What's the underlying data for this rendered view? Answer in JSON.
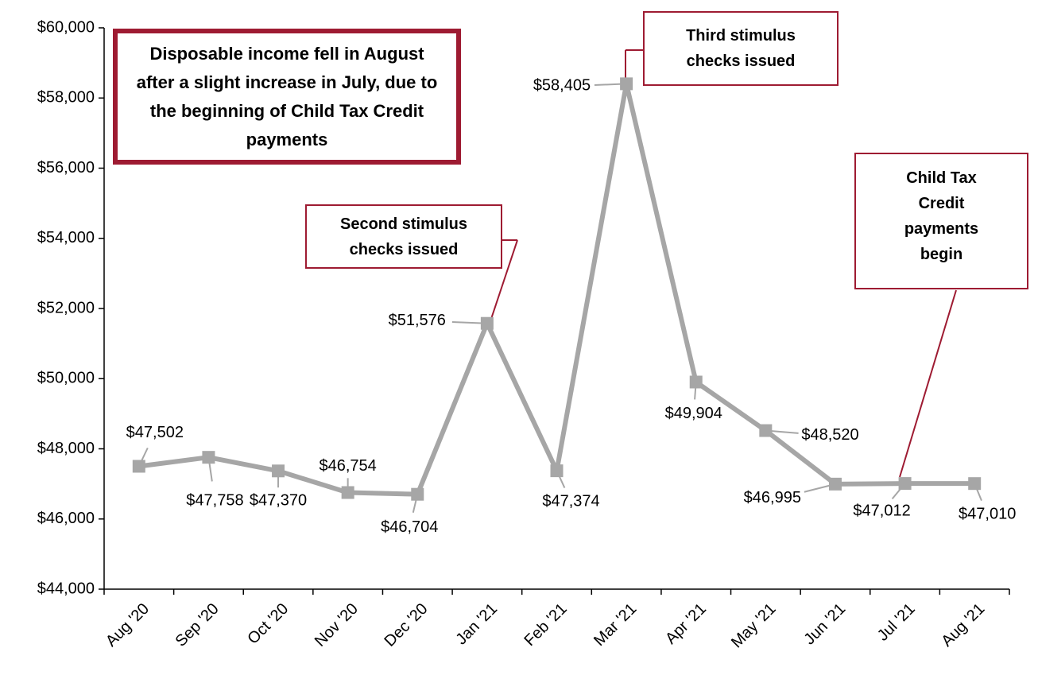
{
  "chart_data": {
    "type": "line",
    "categories": [
      "Aug '20",
      "Sep '20",
      "Oct '20",
      "Nov '20",
      "Dec '20",
      "Jan '21",
      "Feb '21",
      "Mar '21",
      "Apr '21",
      "May '21",
      "Jun '21",
      "Jul '21",
      "Aug '21"
    ],
    "values": [
      47502,
      47758,
      47370,
      46754,
      46704,
      51576,
      47374,
      58405,
      49904,
      48520,
      46995,
      47012,
      47010
    ],
    "value_labels": [
      "$47,502",
      "$47,758",
      "$47,370",
      "$46,754",
      "$46,704",
      "$51,576",
      "$47,374",
      "$58,405",
      "$49,904",
      "$48,520",
      "$46,995",
      "$47,012",
      "$47,010"
    ],
    "color": "#a6a6a6",
    "ylim": [
      44000,
      60000
    ],
    "yticks": [
      {
        "value": 44000,
        "label": "$44,000"
      },
      {
        "value": 46000,
        "label": "$46,000"
      },
      {
        "value": 48000,
        "label": "$48,000"
      },
      {
        "value": 50000,
        "label": "$50,000"
      },
      {
        "value": 52000,
        "label": "$52,000"
      },
      {
        "value": 54000,
        "label": "$54,000"
      },
      {
        "value": 56000,
        "label": "$56,000"
      },
      {
        "value": 58000,
        "label": "$58,000"
      },
      {
        "value": 60000,
        "label": "$60,000"
      }
    ],
    "annotations": [
      {
        "text": "Disposable income fell in August after a slight increase in July, due to the beginning of Child Tax Credit payments"
      },
      {
        "text": "Second stimulus checks issued"
      },
      {
        "text": "Third stimulus checks issued"
      },
      {
        "text": "Child Tax Credit payments begin"
      }
    ]
  }
}
